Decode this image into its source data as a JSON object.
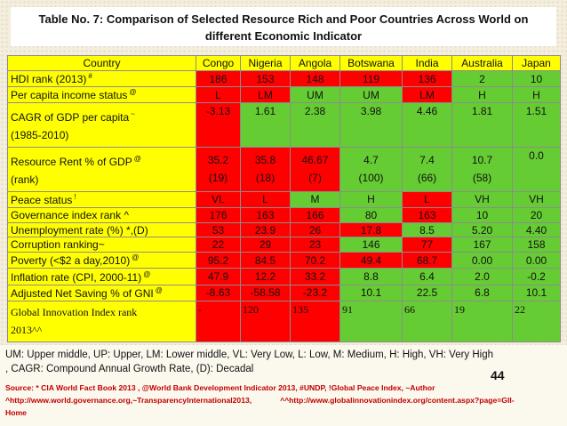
{
  "title": {
    "line1": "Table No. 7: Comparison of Selected Resource Rich and Poor Countries Across World on",
    "line2": "different Economic Indicator"
  },
  "colors": {
    "red": "#ff0000",
    "green": "#66cc33",
    "yellow": "#ffff00"
  },
  "table": {
    "headers": [
      "Country",
      "Congo",
      "Nigeria",
      "Angola",
      "Botswana",
      "India",
      "Australia",
      "Japan"
    ],
    "rows": [
      {
        "label": "HDI rank (2013)",
        "mark": "#",
        "cells": [
          {
            "v": "186",
            "c": "r"
          },
          {
            "v": "153",
            "c": "r"
          },
          {
            "v": "148",
            "c": "r"
          },
          {
            "v": "119",
            "c": "r"
          },
          {
            "v": "136",
            "c": "r"
          },
          {
            "v": "2",
            "c": "g"
          },
          {
            "v": "10",
            "c": "g"
          }
        ]
      },
      {
        "label": "Per capita income status",
        "mark": "@",
        "cells": [
          {
            "v": "L",
            "c": "r"
          },
          {
            "v": "LM",
            "c": "r"
          },
          {
            "v": "UM",
            "c": "g"
          },
          {
            "v": "UM",
            "c": "g"
          },
          {
            "v": "LM",
            "c": "r"
          },
          {
            "v": "H",
            "c": "g"
          },
          {
            "v": "H",
            "c": "g"
          }
        ]
      },
      {
        "label": "CAGR of GDP per capita",
        "label2": "(1985-2010)",
        "mark": "~",
        "cells": [
          {
            "v": "-3.13",
            "c": "r"
          },
          {
            "v": "1.61",
            "c": "g"
          },
          {
            "v": "2.38",
            "c": "g"
          },
          {
            "v": "3.98",
            "c": "g"
          },
          {
            "v": "4.46",
            "c": "g"
          },
          {
            "v": "1.81",
            "c": "g"
          },
          {
            "v": "1.51",
            "c": "g"
          }
        ]
      },
      {
        "label": "Resource Rent % of GDP",
        "label2": "(rank)",
        "mark": "@",
        "cells": [
          {
            "v": "35.2",
            "v2": "(19)",
            "c": "r"
          },
          {
            "v": "35.8",
            "v2": "(18)",
            "c": "r"
          },
          {
            "v": "46.67",
            "v2": "(7)",
            "c": "r"
          },
          {
            "v": "4.7",
            "v2": "(100)",
            "c": "g"
          },
          {
            "v": "7.4",
            "v2": "(66)",
            "c": "g"
          },
          {
            "v": "10.7",
            "v2": "(58)",
            "c": "g"
          },
          {
            "v": "0.0",
            "v2": "",
            "c": "g"
          }
        ]
      },
      {
        "label": "Peace status",
        "mark": "!",
        "cells": [
          {
            "v": "VL",
            "c": "r"
          },
          {
            "v": "L",
            "c": "r"
          },
          {
            "v": "M",
            "c": "g"
          },
          {
            "v": "H",
            "c": "g"
          },
          {
            "v": "L",
            "c": "r"
          },
          {
            "v": "VH",
            "c": "g"
          },
          {
            "v": "VH",
            "c": "g"
          }
        ]
      },
      {
        "label": "Governance index rank ^",
        "mark": "",
        "cells": [
          {
            "v": "176",
            "c": "r"
          },
          {
            "v": "163",
            "c": "r"
          },
          {
            "v": "166",
            "c": "r"
          },
          {
            "v": "80",
            "c": "g"
          },
          {
            "v": "163",
            "c": "r"
          },
          {
            "v": "10",
            "c": "g"
          },
          {
            "v": "20",
            "c": "g"
          }
        ]
      },
      {
        "label": "Unemployment rate (%) *,(D)",
        "mark": "",
        "cells": [
          {
            "v": "53",
            "c": "r"
          },
          {
            "v": "23.9",
            "c": "r"
          },
          {
            "v": "26",
            "c": "r"
          },
          {
            "v": "17.8",
            "c": "r"
          },
          {
            "v": "8.5",
            "c": "g"
          },
          {
            "v": "5.20",
            "c": "g"
          },
          {
            "v": "4.40",
            "c": "g"
          }
        ]
      },
      {
        "label": "Corruption  ranking~",
        "mark": "",
        "cells": [
          {
            "v": "22",
            "c": "r"
          },
          {
            "v": "29",
            "c": "r"
          },
          {
            "v": "23",
            "c": "r"
          },
          {
            "v": "146",
            "c": "g"
          },
          {
            "v": "77",
            "c": "r"
          },
          {
            "v": "167",
            "c": "g"
          },
          {
            "v": "158",
            "c": "g"
          }
        ]
      },
      {
        "label": "Poverty (<$2 a day,2010)",
        "mark": "@",
        "cells": [
          {
            "v": "95.2",
            "c": "r"
          },
          {
            "v": "84.5",
            "c": "r"
          },
          {
            "v": "70.2",
            "c": "r"
          },
          {
            "v": "49.4",
            "c": "r"
          },
          {
            "v": "68.7",
            "c": "r"
          },
          {
            "v": "0.00",
            "c": "g"
          },
          {
            "v": "0.00",
            "c": "g"
          }
        ]
      },
      {
        "label": "Inflation rate (CPI, 2000-11)",
        "mark": "@",
        "cells": [
          {
            "v": "47.9",
            "c": "r"
          },
          {
            "v": "12.2",
            "c": "r"
          },
          {
            "v": "33.2",
            "c": "r"
          },
          {
            "v": "8.8",
            "c": "g"
          },
          {
            "v": "6.4",
            "c": "g"
          },
          {
            "v": "2.0",
            "c": "g"
          },
          {
            "v": "-0.2",
            "c": "g"
          }
        ]
      },
      {
        "label": "Adjusted Net Saving % of GNI",
        "mark": "@",
        "cells": [
          {
            "v": "-8.63",
            "c": "r"
          },
          {
            "v": "-58.58",
            "c": "r"
          },
          {
            "v": "-23.2",
            "c": "r"
          },
          {
            "v": "10.1",
            "c": "g"
          },
          {
            "v": "22.5",
            "c": "g"
          },
          {
            "v": "6.8",
            "c": "g"
          },
          {
            "v": "10.1",
            "c": "g"
          }
        ]
      }
    ],
    "gii": {
      "label": "Global Innovation Index rank",
      "label2": "2013^^",
      "cells": [
        {
          "v": "-",
          "c": "r"
        },
        {
          "v": "120",
          "c": "r"
        },
        {
          "v": "135",
          "c": "r"
        },
        {
          "v": "91",
          "c": "g"
        },
        {
          "v": "66",
          "c": "g"
        },
        {
          "v": "19",
          "c": "g"
        },
        {
          "v": "22",
          "c": "g"
        }
      ]
    }
  },
  "footer": {
    "legend1": "UM: Upper middle, UP: Upper, LM: Lower middle, VL: Very Low, L: Low, M: Medium, H: High, VH: Very High",
    "legend2": ", CAGR: Compound Annual Growth Rate, (D): Decadal",
    "page_number": "44",
    "source1": "Source: * CIA World Fact Book 2013 , @World Bank Development Indicator 2013, #UNDP, !Global Peace Index, ~Author",
    "source2a": "^http://www.world.governance.org,~TransparencyInternational2013,",
    "source2b": "^^http://www.globalinnovationindex.org/content.aspx?page=GII-",
    "source3": "Home"
  }
}
